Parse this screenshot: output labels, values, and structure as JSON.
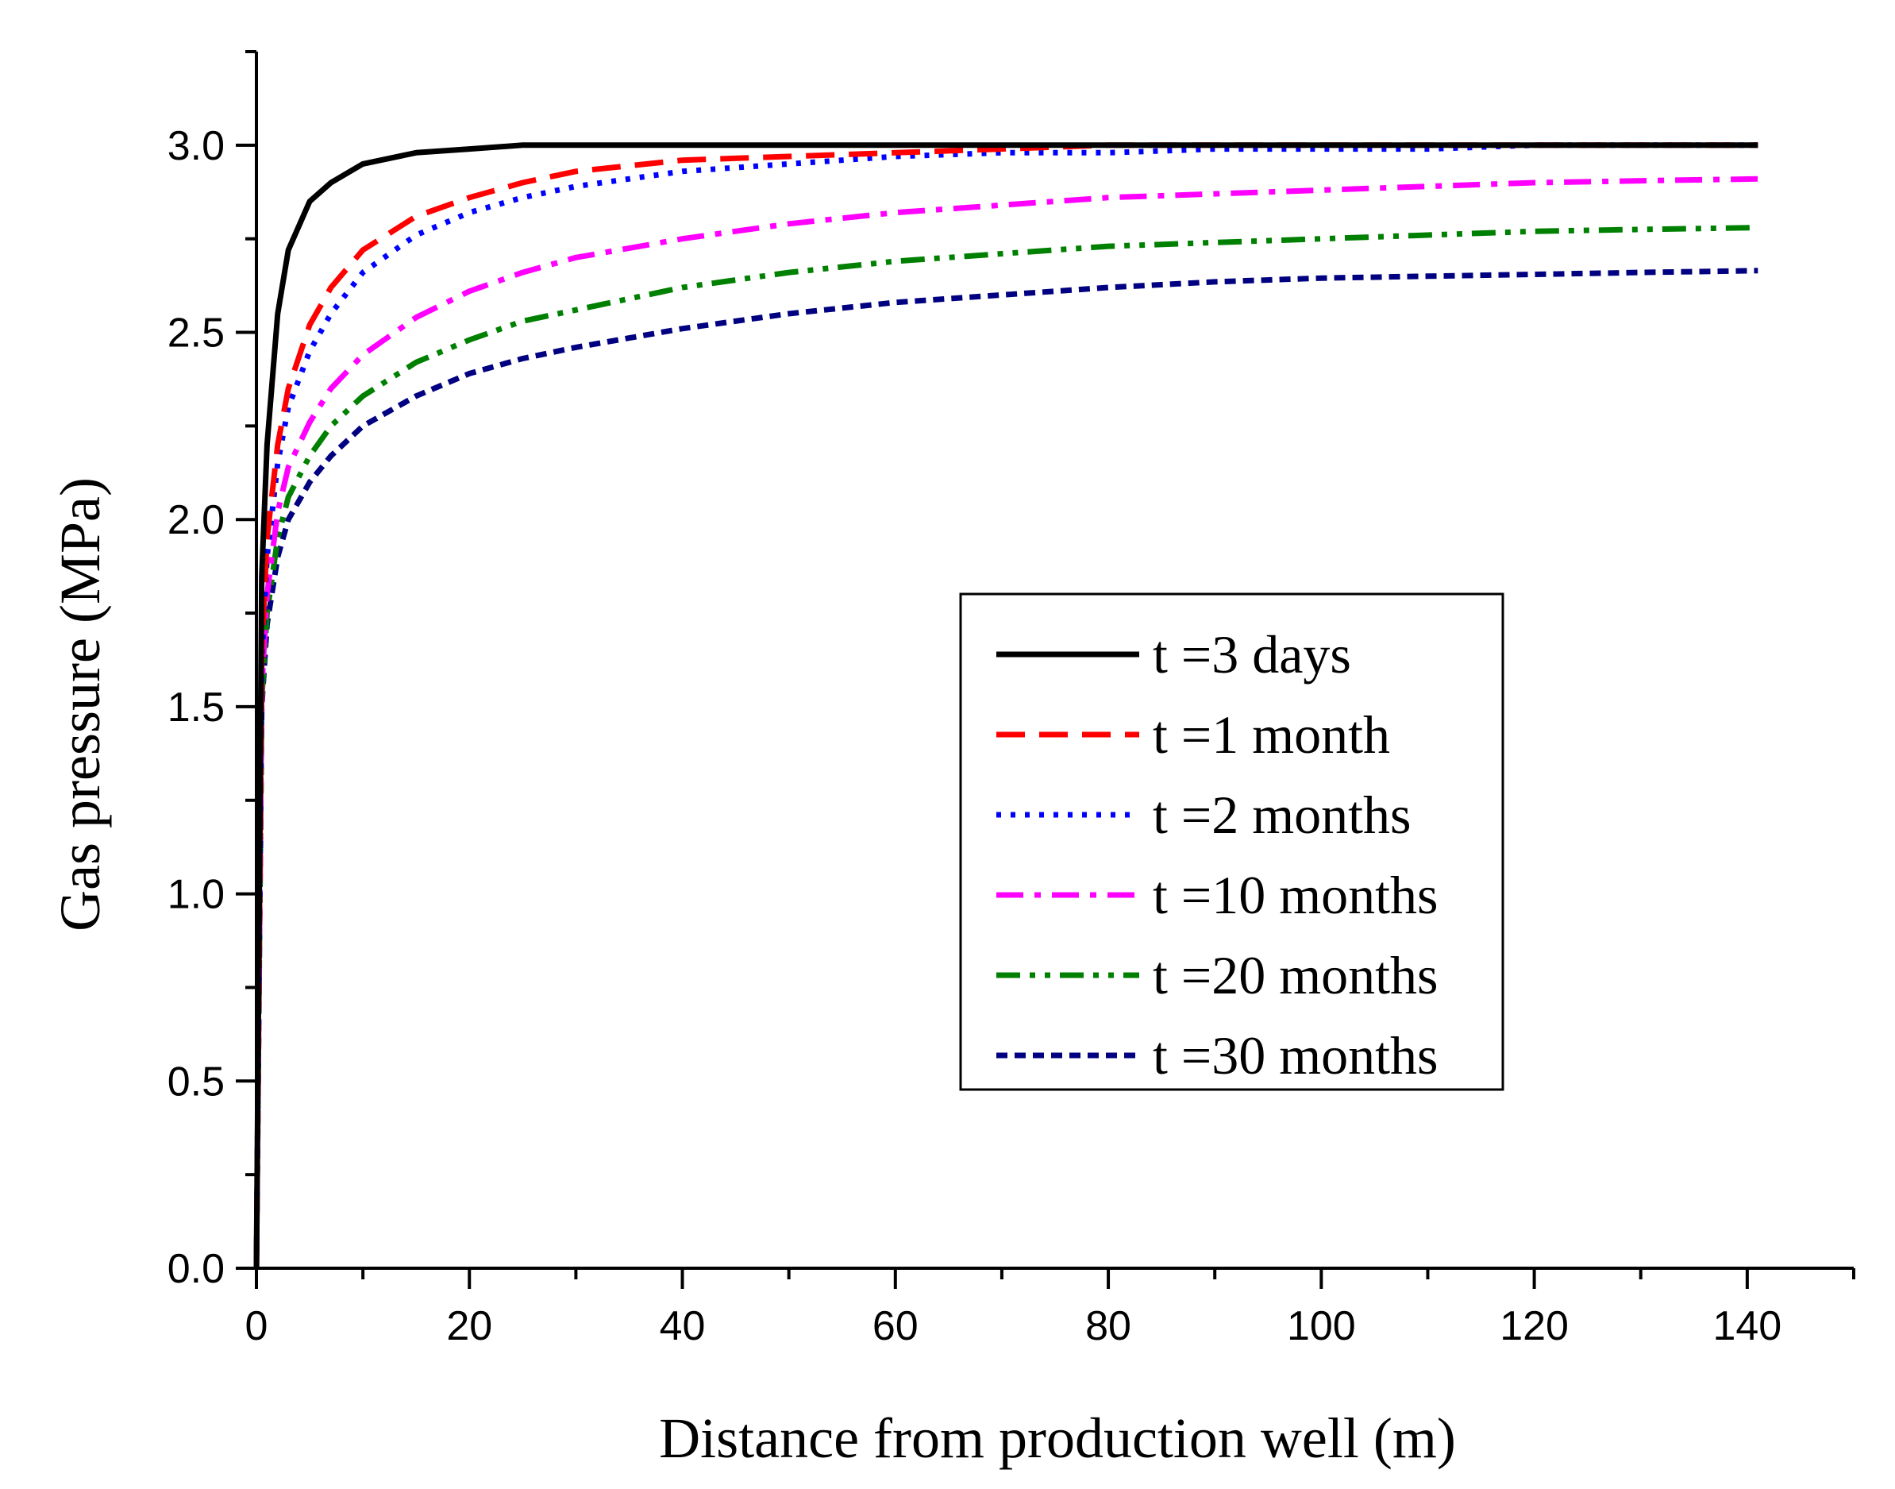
{
  "chart_data": {
    "type": "line",
    "title": "",
    "xlabel": "Distance from production well (m)",
    "ylabel": "Gas pressure (MPa)",
    "xlim": [
      0,
      150
    ],
    "ylim": [
      0,
      3.25
    ],
    "x_ticks": [
      0,
      20,
      40,
      60,
      80,
      100,
      120,
      140
    ],
    "x_tick_labels": [
      "0",
      "20",
      "40",
      "60",
      "80",
      "100",
      "120",
      "140"
    ],
    "y_ticks": [
      0.0,
      0.5,
      1.0,
      1.5,
      2.0,
      2.5,
      3.0
    ],
    "y_tick_labels": [
      "0.0",
      "0.5",
      "1.0",
      "1.5",
      "2.0",
      "2.5",
      "3.0"
    ],
    "grid": false,
    "legend_position": "center-right",
    "x": [
      0,
      0.5,
      1,
      2,
      3,
      5,
      7,
      10,
      15,
      20,
      25,
      30,
      40,
      50,
      60,
      70,
      80,
      90,
      100,
      110,
      120,
      130,
      141
    ],
    "series": [
      {
        "name": "t =3 days",
        "color": "#000000",
        "dash": "solid",
        "values": [
          0,
          1.85,
          2.2,
          2.55,
          2.72,
          2.85,
          2.9,
          2.95,
          2.98,
          2.99,
          3.0,
          3.0,
          3.0,
          3.0,
          3.0,
          3.0,
          3.0,
          3.0,
          3.0,
          3.0,
          3.0,
          3.0,
          3.0
        ]
      },
      {
        "name": "t =1 month",
        "color": "#ff0000",
        "dash": "dash",
        "values": [
          0,
          1.65,
          1.95,
          2.2,
          2.35,
          2.52,
          2.62,
          2.72,
          2.81,
          2.86,
          2.9,
          2.93,
          2.96,
          2.97,
          2.98,
          2.99,
          3.0,
          3.0,
          3.0,
          3.0,
          3.0,
          3.0,
          3.0
        ]
      },
      {
        "name": "t =2 months",
        "color": "#0000ff",
        "dash": "dot",
        "values": [
          0,
          1.62,
          1.9,
          2.15,
          2.3,
          2.45,
          2.55,
          2.66,
          2.76,
          2.82,
          2.86,
          2.89,
          2.93,
          2.95,
          2.97,
          2.98,
          2.98,
          2.99,
          2.99,
          2.99,
          3.0,
          3.0,
          3.0
        ]
      },
      {
        "name": "t =10 months",
        "color": "#ff00ff",
        "dash": "dashdot",
        "values": [
          0,
          1.55,
          1.8,
          2.02,
          2.14,
          2.26,
          2.35,
          2.44,
          2.54,
          2.61,
          2.66,
          2.7,
          2.75,
          2.79,
          2.82,
          2.84,
          2.86,
          2.87,
          2.88,
          2.89,
          2.9,
          2.905,
          2.91
        ]
      },
      {
        "name": "t =20 months",
        "color": "#008000",
        "dash": "dashdotdot",
        "values": [
          0,
          1.52,
          1.75,
          1.95,
          2.06,
          2.17,
          2.25,
          2.33,
          2.42,
          2.48,
          2.53,
          2.56,
          2.62,
          2.66,
          2.69,
          2.71,
          2.73,
          2.74,
          2.75,
          2.76,
          2.77,
          2.775,
          2.78
        ]
      },
      {
        "name": "t =30 months",
        "color": "#000080",
        "dash": "shortdash",
        "values": [
          0,
          1.5,
          1.72,
          1.9,
          2.0,
          2.1,
          2.17,
          2.25,
          2.33,
          2.39,
          2.43,
          2.46,
          2.51,
          2.55,
          2.58,
          2.6,
          2.62,
          2.635,
          2.645,
          2.65,
          2.655,
          2.66,
          2.665
        ]
      }
    ]
  }
}
